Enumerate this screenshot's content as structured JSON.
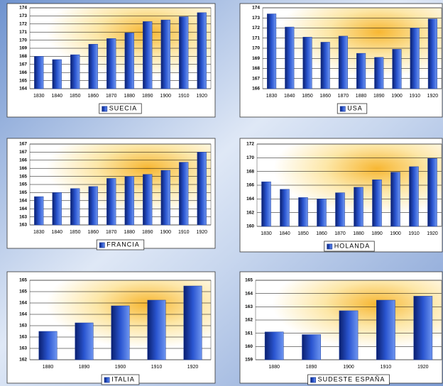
{
  "chart_data": [
    {
      "type": "bar",
      "categories": [
        "1830",
        "1840",
        "1850",
        "1860",
        "1870",
        "1880",
        "1890",
        "1900",
        "1910",
        "1920"
      ],
      "series": [
        {
          "name": "SUECIA",
          "color": "#1f3f9f",
          "values": [
            168.0,
            167.6,
            168.2,
            169.5,
            170.2,
            170.9,
            172.3,
            172.5,
            172.9,
            173.4
          ]
        }
      ],
      "ylim": [
        164,
        174
      ],
      "yticks": [
        164,
        165,
        166,
        167,
        168,
        169,
        170,
        171,
        172,
        173,
        174
      ],
      "grid": true
    },
    {
      "type": "bar",
      "categories": [
        "1830",
        "1840",
        "1850",
        "1860",
        "1870",
        "1880",
        "1890",
        "1900",
        "1910",
        "1920"
      ],
      "series": [
        {
          "name": "USA",
          "color": "#1f3f9f",
          "values": [
            173.4,
            172.1,
            171.1,
            170.6,
            171.2,
            169.5,
            169.1,
            169.9,
            172.0,
            172.9
          ]
        }
      ],
      "ylim": [
        166,
        174
      ],
      "yticks": [
        166,
        167,
        168,
        169,
        170,
        171,
        172,
        173,
        174
      ],
      "grid": true
    },
    {
      "type": "bar",
      "categories": [
        "1830",
        "1840",
        "1850",
        "1860",
        "1870",
        "1880",
        "1890",
        "1900",
        "1910",
        "1920"
      ],
      "series": [
        {
          "name": "FRANCIA",
          "color": "#1f3f9f",
          "values": [
            164.4,
            164.6,
            164.8,
            164.9,
            165.3,
            165.4,
            165.5,
            165.7,
            166.1,
            166.6
          ]
        }
      ],
      "ylim": [
        163,
        167
      ],
      "yticks": [
        163,
        {
          "value": 163.4,
          "label": "163"
        },
        {
          "value": 163.8,
          "label": "164"
        },
        {
          "value": 164.2,
          "label": "164"
        },
        {
          "value": 164.6,
          "label": "165"
        },
        165,
        {
          "value": 165.4,
          "label": "165"
        },
        {
          "value": 165.8,
          "label": "166"
        },
        {
          "value": 166.2,
          "label": "166"
        },
        {
          "value": 166.6,
          "label": "167"
        },
        167
      ],
      "grid": true
    },
    {
      "type": "bar",
      "categories": [
        "1830",
        "1840",
        "1850",
        "1860",
        "1870",
        "1880",
        "1890",
        "1900",
        "1910",
        "1920"
      ],
      "series": [
        {
          "name": "HOLANDA",
          "color": "#1f3f9f",
          "values": [
            166.5,
            165.4,
            164.2,
            164.0,
            164.9,
            165.7,
            166.8,
            167.9,
            168.7,
            169.9
          ]
        }
      ],
      "ylim": [
        160,
        172
      ],
      "yticks": [
        160,
        162,
        164,
        166,
        168,
        170,
        172
      ],
      "grid": true
    },
    {
      "type": "bar",
      "categories": [
        "1880",
        "1890",
        "1900",
        "1910",
        "1920"
      ],
      "series": [
        {
          "name": "ITALIA",
          "color": "#1f3f9f",
          "values": [
            163.2,
            163.5,
            164.1,
            164.3,
            164.8
          ]
        }
      ],
      "ylim": [
        162.2,
        165.0
      ],
      "yticks": [
        {
          "value": 162.2,
          "label": "162"
        },
        {
          "value": 162.6,
          "label": "163"
        },
        163,
        {
          "value": 163.4,
          "label": "163"
        },
        {
          "value": 163.8,
          "label": "164"
        },
        {
          "value": 164.2,
          "label": "164"
        },
        {
          "value": 164.6,
          "label": "165"
        },
        165
      ],
      "grid": true
    },
    {
      "type": "bar",
      "categories": [
        "1880",
        "1890",
        "1900",
        "1910",
        "1920"
      ],
      "series": [
        {
          "name": "SUDESTE ESPAÑA",
          "color": "#1f3f9f",
          "values": [
            161.1,
            160.9,
            162.7,
            163.5,
            163.8
          ]
        }
      ],
      "ylim": [
        159,
        165
      ],
      "yticks": [
        159,
        160,
        161,
        162,
        163,
        164,
        165
      ],
      "grid": true
    }
  ]
}
